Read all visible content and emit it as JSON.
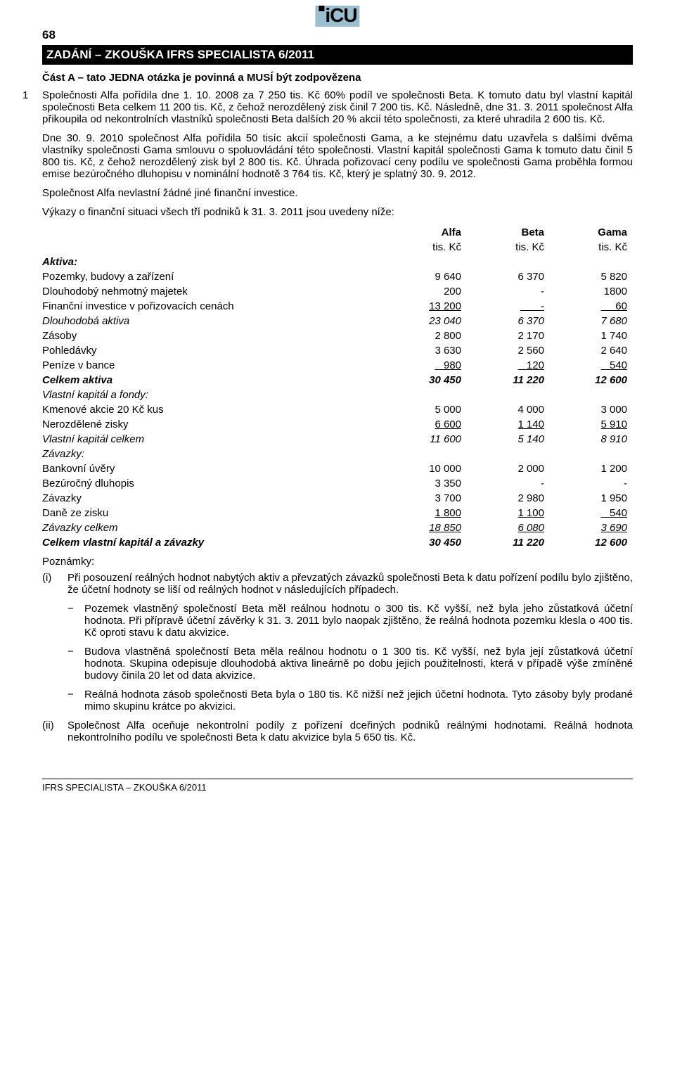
{
  "page_number": "68",
  "logo_text": "iCU",
  "header_bar": "ZADÁNÍ – ZKOUŠKA IFRS SPECIALISTA 6/2011",
  "section_a": "Část A – tato JEDNA otázka je povinná a MUSÍ být zodpovězena",
  "q_num": "1",
  "paragraphs": {
    "p1": "Společnosti Alfa pořídila dne 1. 10. 2008 za 7 250 tis. Kč 60% podíl ve společnosti Beta. K tomuto datu byl vlastní kapitál společnosti Beta celkem 11 200 tis. Kč, z čehož nerozdělený zisk činil 7 200 tis. Kč. Následně, dne 31. 3. 2011 společnost Alfa přikoupila od nekontrolních vlastníků společnosti Beta dalších 20 % akcií této společnosti, za které uhradila 2 600 tis. Kč.",
    "p2": "Dne 30. 9. 2010 společnost Alfa pořídila 50 tisíc akcií společnosti Gama, a ke stejnému datu uzavřela s dalšími dvěma vlastníky společnosti Gama smlouvu o spoluovládání této společnosti. Vlastní kapitál společnosti Gama k tomuto datu činil 5 800 tis. Kč, z čehož nerozdělený zisk byl 2 800 tis. Kč. Úhrada pořizovací ceny podílu ve společnosti Gama proběhla formou emise bezúročného dluhopisu v nominální hodnotě 3 764 tis. Kč, který je splatný 30. 9. 2012.",
    "p3": "Společnost Alfa nevlastní žádné jiné finanční investice.",
    "p4": "Výkazy o finanční situaci všech tří podniků k 31. 3. 2011 jsou uvedeny níže:"
  },
  "table": {
    "headers": {
      "c1": "Alfa",
      "c2": "Beta",
      "c3": "Gama"
    },
    "unit": "tis. Kč",
    "sections": {
      "aktiva_label": "Aktiva:",
      "vk_label": "Vlastní kapitál a fondy:",
      "zav_label": "Závazky:"
    },
    "rows": [
      {
        "lbl": "Pozemky, budovy a zařízení",
        "c1": "9 640",
        "c2": "6 370",
        "c3": "5 820"
      },
      {
        "lbl": "Dlouhodobý nehmotný majetek",
        "c1": "200",
        "c2": "-",
        "c3": "1800"
      },
      {
        "lbl": "Finanční investice v pořizovacích cenách",
        "c1": "13 200",
        "c2": "       -",
        "c3": "     60",
        "u": true
      },
      {
        "lbl": "Dlouhodobá aktiva",
        "c1": "23 040",
        "c2": "6 370",
        "c3": "7 680",
        "style": "i"
      },
      {
        "lbl": "Zásoby",
        "c1": "2 800",
        "c2": "2 170",
        "c3": "1 740"
      },
      {
        "lbl": "Pohledávky",
        "c1": "3 630",
        "c2": "2 560",
        "c3": "2 640"
      },
      {
        "lbl": "Peníze v bance",
        "c1": "   980",
        "c2": "   120",
        "c3": "   540",
        "u": true
      },
      {
        "lbl": "Celkem aktiva",
        "c1": "30 450",
        "c2": "11 220",
        "c3": "12 600",
        "style": "bi"
      }
    ],
    "rows_vk": [
      {
        "lbl": "Kmenové akcie 20 Kč kus",
        "c1": "5 000",
        "c2": "4 000",
        "c3": "3 000"
      },
      {
        "lbl": "Nerozdělené zisky",
        "c1": "6 600",
        "c2": "1 140",
        "c3": "5 910",
        "u": true
      },
      {
        "lbl": "Vlastní kapitál celkem",
        "c1": "11 600",
        "c2": "5 140",
        "c3": "8 910",
        "style": "i"
      }
    ],
    "rows_zav": [
      {
        "lbl": "Bankovní úvěry",
        "c1": "10 000",
        "c2": "2 000",
        "c3": "1 200"
      },
      {
        "lbl": "Bezúročný dluhopis",
        "c1": "3 350",
        "c2": "-",
        "c3": "-"
      },
      {
        "lbl": "Závazky",
        "c1": "3 700",
        "c2": "2 980",
        "c3": "1 950"
      },
      {
        "lbl": "Daně ze zisku",
        "c1": "1 800",
        "c2": "1 100",
        "c3": "   540",
        "u": true
      },
      {
        "lbl": "Závazky celkem",
        "c1": "18 850",
        "c2": "6 080",
        "c3": "3 690",
        "style": "i",
        "u": true
      },
      {
        "lbl": "Celkem vlastní kapitál a závazky",
        "c1": "30 450",
        "c2": "11 220",
        "c3": "12 600",
        "style": "bi"
      }
    ]
  },
  "notes_label": "Poznámky:",
  "notes": {
    "i_marker": "(i)",
    "i_text": "Při posouzení reálných hodnot nabytých aktiv a převzatých závazků společnosti Beta k datu pořízení podílu bylo zjištěno, že účetní hodnoty se liší od reálných hodnot v následujících případech.",
    "i_sub": [
      "Pozemek vlastněný společností Beta měl reálnou hodnotu o 300 tis. Kč vyšší, než byla jeho zůstatková účetní hodnota. Při přípravě účetní závěrky k 31. 3. 2011 bylo naopak zjištěno, že reálná hodnota pozemku klesla o 400 tis. Kč oproti stavu k datu akvizice.",
      "Budova vlastněná společností Beta měla reálnou hodnotu o 1 300 tis. Kč vyšší, než byla její zůstatková účetní hodnota. Skupina odepisuje dlouhodobá aktiva lineárně po dobu jejich použitelnosti, která v případě výše zmíněné budovy činila 20 let od data akvizice.",
      "Reálná hodnota zásob společnosti Beta byla o 180 tis. Kč nižší než jejich účetní hodnota. Tyto zásoby byly prodané mimo skupinu krátce po akvizici."
    ],
    "ii_marker": "(ii)",
    "ii_text": "Společnost Alfa oceňuje nekontrolní podíly z pořízení dceřiných podniků reálnými hodnotami. Reálná hodnota nekontrolního podílu ve společnosti Beta k datu akvizice byla 5 650 tis. Kč."
  },
  "footer": "IFRS SPECIALISTA – ZKOUŠKA 6/2011"
}
